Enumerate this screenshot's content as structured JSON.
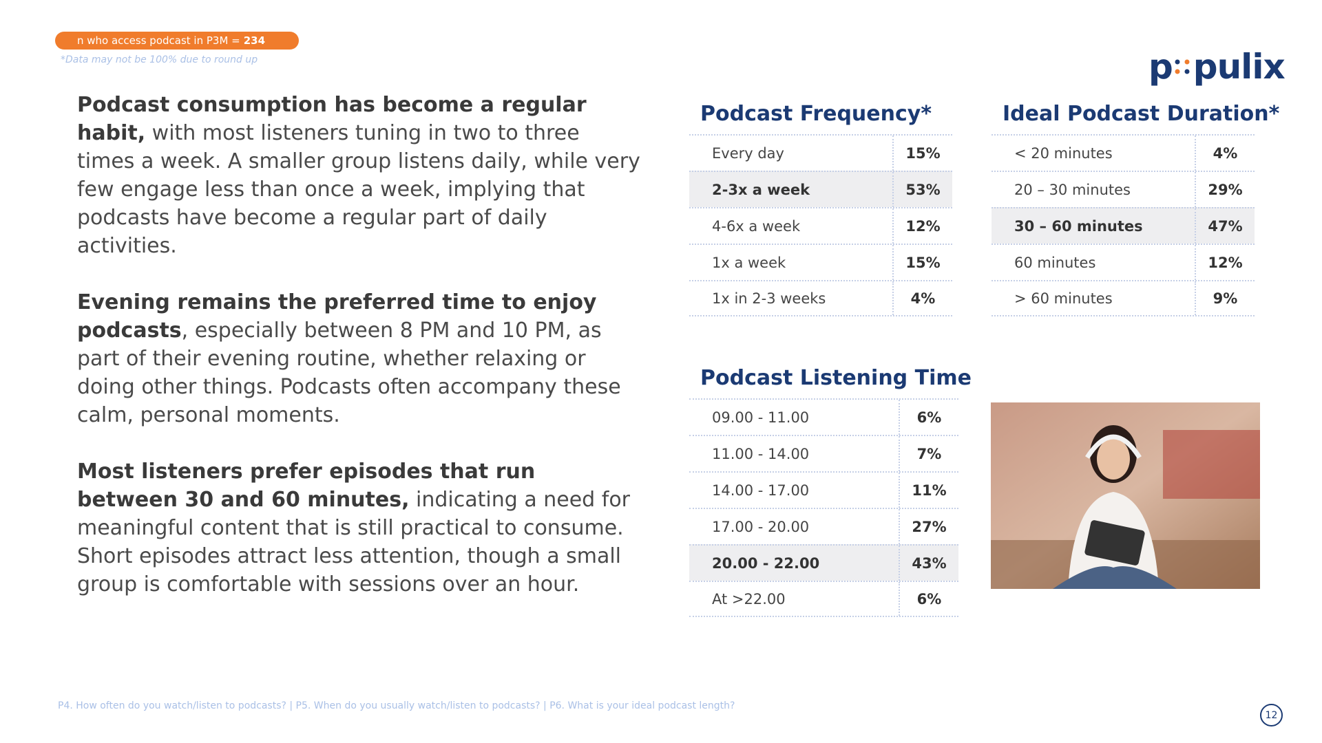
{
  "badge": {
    "label": "n who access podcast in P3M =",
    "value": "234"
  },
  "note": "*Data may not be 100% due to round up",
  "logo": {
    "left": "p",
    "right": "pulix"
  },
  "paragraphs": [
    {
      "bold": "Podcast consumption has become a regular habit,",
      "text": "with most listeners tuning in two to three times a week. A smaller group listens daily, while very few engage less than once a week, implying that podcasts have become a regular part of daily activities."
    },
    {
      "bold": "Evening remains the preferred time to enjoy podcasts",
      "text": ", especially between 8 PM and 10 PM, as part of their evening routine, whether relaxing or doing other things. Podcasts often accompany these calm, personal moments."
    },
    {
      "bold": "Most listeners prefer episodes that run between 30 and 60 minutes,",
      "text": "indicating a need for meaningful content that is still practical to consume. Short episodes attract less attention, though a small group is comfortable with sessions over an hour."
    }
  ],
  "tables": [
    {
      "title": "Podcast Frequency*",
      "rows": [
        {
          "label": "Every day",
          "value": "15%"
        },
        {
          "label": "2-3x a week",
          "value": "53%",
          "highlight": true
        },
        {
          "label": "4-6x a week",
          "value": "12%"
        },
        {
          "label": "1x a week",
          "value": "15%"
        },
        {
          "label": "1x in 2-3 weeks",
          "value": "4%"
        }
      ]
    },
    {
      "title": "Ideal Podcast Duration*",
      "rows": [
        {
          "label": "< 20 minutes",
          "value": "4%"
        },
        {
          "label": "20 – 30 minutes",
          "value": "29%"
        },
        {
          "label": "30 – 60 minutes",
          "value": "47%",
          "highlight": true
        },
        {
          "label": "60 minutes",
          "value": "12%"
        },
        {
          "label": "> 60 minutes",
          "value": "9%"
        }
      ]
    },
    {
      "title": "Podcast Listening Time",
      "rows": [
        {
          "label": "09.00 - 11.00",
          "value": "6%"
        },
        {
          "label": "11.00 - 14.00",
          "value": "7%"
        },
        {
          "label": "14.00 - 17.00",
          "value": "11%"
        },
        {
          "label": "17.00 - 20.00",
          "value": "27%"
        },
        {
          "label": "20.00 - 22.00",
          "value": "43%",
          "highlight": true
        },
        {
          "label": "At >22.00",
          "value": "6%"
        }
      ]
    }
  ],
  "footer": "P4. How often do you watch/listen to podcasts? | P5. When do you usually watch/listen to podcasts? | P6. What is your ideal podcast length?",
  "page_number": "12"
}
